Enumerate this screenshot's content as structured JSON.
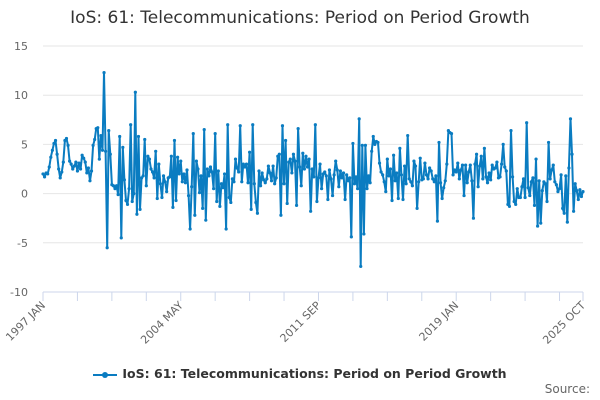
{
  "chart_data": {
    "type": "line",
    "title": "IoS: 61: Telecommunications: Period on Period Growth",
    "xlabel": "",
    "ylabel": "",
    "start": "1997 JAN",
    "end": "2025 OCT",
    "frequency": "monthly",
    "ylim": [
      -10,
      15
    ],
    "yticks": [
      15,
      10,
      5,
      0,
      -5,
      -10
    ],
    "xtick_labels": [
      "1997 JAN",
      "2004 MAY",
      "2011 SEP",
      "2019 JAN",
      "2025 OCT"
    ],
    "grid": true,
    "legend_position": "bottom",
    "color": "#0a7cc1",
    "series": [
      {
        "name": "IoS: 61: Telecommunications: Period on Period Growth",
        "values": [
          2.0,
          1.7,
          2.1,
          2.0,
          2.7,
          3.7,
          4.4,
          5.1,
          5.4,
          4.0,
          2.5,
          1.6,
          2.2,
          3.2,
          5.4,
          5.6,
          4.9,
          3.3,
          3.0,
          2.5,
          2.8,
          3.2,
          2.3,
          3.1,
          2.5,
          3.9,
          3.6,
          3.2,
          2.1,
          2.6,
          1.3,
          2.3,
          4.9,
          5.5,
          6.6,
          6.7,
          3.5,
          5.9,
          4.4,
          12.3,
          4.3,
          -5.5,
          6.4,
          4.0,
          0.9,
          0.8,
          0.5,
          0.8,
          -0.1,
          5.8,
          -4.5,
          4.7,
          1.4,
          -0.7,
          -1.1,
          0.5,
          7.0,
          -0.8,
          0.0,
          10.3,
          -2.1,
          5.8,
          -1.6,
          1.6,
          1.8,
          5.5,
          0.8,
          3.8,
          3.5,
          2.5,
          2.2,
          1.6,
          4.3,
          -0.5,
          3.0,
          1.0,
          -0.4,
          1.8,
          1.2,
          0.2,
          1.6,
          1.7,
          3.8,
          -1.4,
          5.4,
          -0.7,
          3.7,
          2.0,
          3.3,
          1.2,
          2.0,
          1.1,
          2.4,
          -0.2,
          -3.6,
          0.7,
          6.1,
          -2.2,
          3.3,
          2.5,
          0.1,
          1.8,
          -1.5,
          6.5,
          -2.7,
          2.5,
          1.8,
          2.7,
          2.2,
          0.5,
          6.1,
          -0.8,
          2.3,
          -1.3,
          1.0,
          0.6,
          2.0,
          -3.6,
          7.0,
          -0.4,
          -0.9,
          1.5,
          1.2,
          3.5,
          2.6,
          2.2,
          6.9,
          1.2,
          3.0,
          2.7,
          3.0,
          1.1,
          4.2,
          -1.6,
          7.0,
          1.0,
          -0.9,
          -2.0,
          2.3,
          0.8,
          2.1,
          1.4,
          1.1,
          1.5,
          2.8,
          2.1,
          1.3,
          2.8,
          1.0,
          1.6,
          3.8,
          4.0,
          -2.2,
          6.9,
          1.0,
          5.4,
          -1.0,
          3.2,
          3.5,
          2.1,
          4.0,
          3.3,
          -1.2,
          6.6,
          2.7,
          0.8,
          4.1,
          2.5,
          3.8,
          2.7,
          3.5,
          -1.8,
          2.5,
          1.7,
          7.0,
          -0.8,
          1.6,
          3.0,
          0.5,
          2.0,
          2.2,
          1.8,
          -0.6,
          2.4,
          1.5,
          -0.2,
          1.9,
          3.3,
          2.4,
          0.7,
          2.3,
          1.6,
          2.1,
          -0.6,
          1.9,
          1.3,
          1.6,
          -4.4,
          5.1,
          1.0,
          1.7,
          0.5,
          7.6,
          -7.4,
          4.9,
          -4.1,
          4.9,
          0.5,
          1.8,
          1.1,
          4.3,
          5.8,
          5.0,
          5.3,
          5.2,
          3.1,
          2.2,
          1.9,
          1.2,
          0.2,
          3.5,
          1.8,
          2.5,
          -0.7,
          3.9,
          1.3,
          2.1,
          -0.5,
          4.6,
          1.9,
          -0.6,
          2.8,
          1.0,
          5.9,
          1.5,
          1.2,
          0.8,
          3.3,
          2.8,
          -1.5,
          1.2,
          3.6,
          1.4,
          1.5,
          3.1,
          1.9,
          1.5,
          2.6,
          2.3,
          1.5,
          1.2,
          1.8,
          -2.8,
          5.2,
          1.1,
          -0.5,
          0.6,
          1.3,
          3.0,
          6.4,
          6.2,
          6.1,
          1.9,
          2.4,
          2.2,
          3.1,
          1.5,
          2.4,
          2.9,
          -0.2,
          2.9,
          1.1,
          2.2,
          2.9,
          1.3,
          -2.5,
          3.0,
          4.0,
          0.7,
          2.8,
          3.8,
          1.5,
          4.6,
          1.7,
          1.1,
          2.1,
          1.4,
          2.9,
          2.5,
          2.6,
          3.2,
          1.6,
          1.7,
          3.0,
          5.0,
          2.7,
          2.3,
          -1.1,
          -1.3,
          6.4,
          1.7,
          -0.8,
          -1.1,
          0.5,
          -0.4,
          -0.4,
          0.7,
          1.5,
          -0.4,
          7.2,
          0.6,
          -0.2,
          1.2,
          1.6,
          -1.2,
          3.5,
          -3.3,
          1.3,
          -3.0,
          0.3,
          1.2,
          1.0,
          -0.8,
          5.2,
          1.5,
          2.4,
          2.9,
          1.2,
          0.9,
          0.2,
          0.5,
          1.9,
          -1.5,
          -2.0,
          1.8,
          -2.9,
          2.6,
          7.6,
          4.0,
          -1.8,
          1.0,
          0.3,
          -0.6,
          0.4,
          -0.3,
          0.2
        ]
      }
    ]
  },
  "footer": {
    "source_label": "Source:"
  }
}
